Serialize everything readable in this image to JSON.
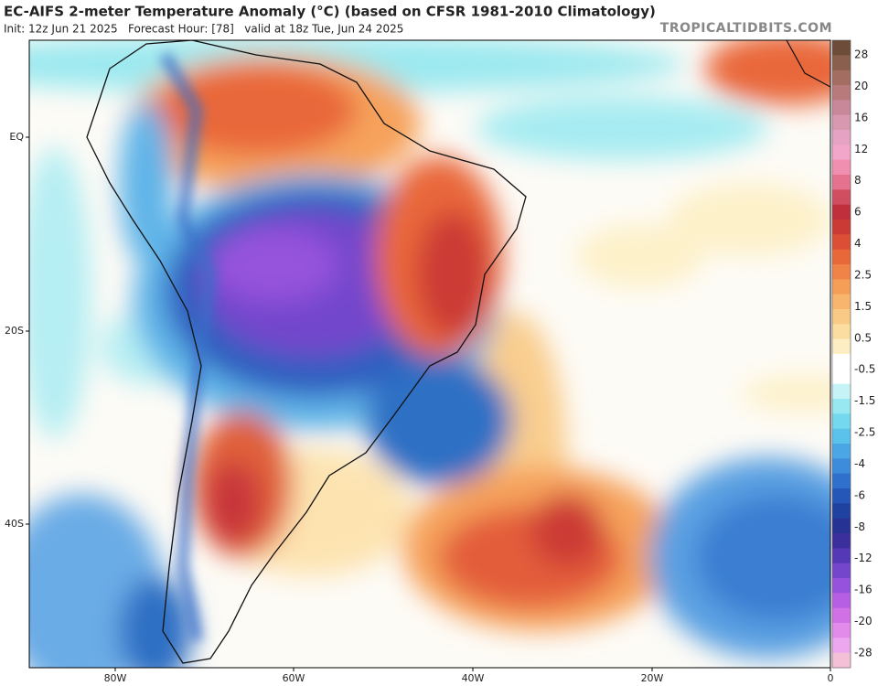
{
  "header": {
    "title": "EC-AIFS 2-meter Temperature Anomaly (°C) (based on CFSR 1981-2010 Climatology)",
    "subtitle": "Init: 12z Jun 21 2025   Forecast Hour: [78]   valid at 18z Tue, Jun 24 2025",
    "watermark": "TROPICALTIDBITS.COM"
  },
  "map": {
    "lat_labels": [
      "EQ",
      "20S",
      "40S"
    ],
    "lon_labels": [
      "80W",
      "60W",
      "40W",
      "20W",
      "0"
    ]
  },
  "colorbar": {
    "labels": [
      "28",
      "20",
      "16",
      "12",
      "8",
      "6",
      "4",
      "2.5",
      "1.5",
      "0.5",
      "-0.5",
      "-1.5",
      "-2.5",
      "-4",
      "-6",
      "-8",
      "-12",
      "-16",
      "-20",
      "-28"
    ],
    "colors": [
      "#6e4c3a",
      "#8a5f4d",
      "#a36d62",
      "#b87a7a",
      "#c9879a",
      "#d898b0",
      "#e6a2c2",
      "#f2a6c9",
      "#f08fb0",
      "#e57390",
      "#d14d60",
      "#bf2f3c",
      "#cc3a36",
      "#dc4e35",
      "#e9683a",
      "#f08347",
      "#f49e58",
      "#f7b56d",
      "#f9c986",
      "#fbdda2",
      "#fdeec3",
      "#ffffff",
      "#ffffff",
      "#c6f3f5",
      "#97e8f0",
      "#74d8ee",
      "#5bc2ec",
      "#4aa6e4",
      "#3d8bdb",
      "#2f70cd",
      "#2457b8",
      "#1f41a0",
      "#273295",
      "#3a2f9d",
      "#5438b5",
      "#7446cc",
      "#9652dc",
      "#b65fe4",
      "#d071e6",
      "#e28bea",
      "#eca7ee",
      "#f3c0d8"
    ]
  }
}
